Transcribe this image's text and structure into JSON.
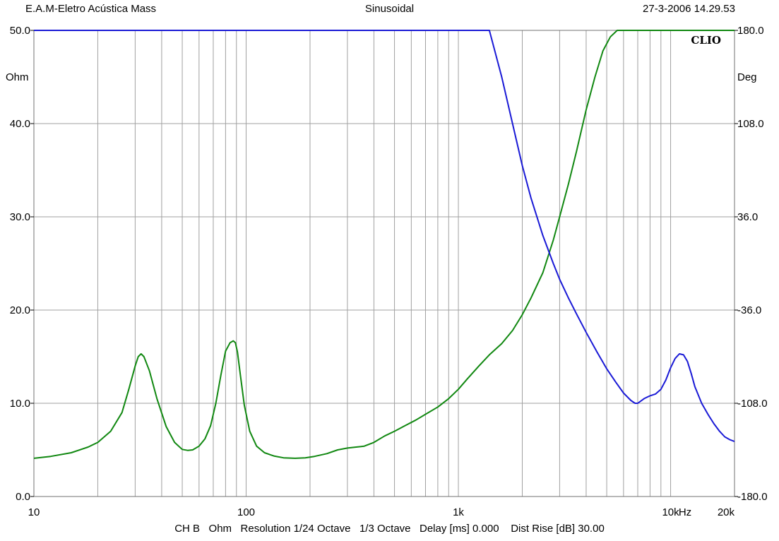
{
  "header": {
    "left": "E.A.M-Eletro Acústica Mass",
    "center": "Sinusoidal",
    "right": "27-3-2006 14.29.53"
  },
  "footer": "CH B   Ohm   Resolution 1/24 Octave   1/3 Octave   Delay [ms] 0.000    Dist Rise [dB] 30.00",
  "chart_data": {
    "type": "line",
    "logo": "CLIO",
    "x_scale": "log",
    "xlim": [
      10,
      20000
    ],
    "x_tick_labels": [
      {
        "value": 10,
        "label": "10"
      },
      {
        "value": 100,
        "label": "100"
      },
      {
        "value": 1000,
        "label": "1k"
      },
      {
        "value": 10000,
        "label": "10k"
      },
      {
        "value": 20000,
        "label": "20k"
      }
    ],
    "x_unit": "Hz",
    "y_left": {
      "unit": "Ohm",
      "ylim": [
        0,
        50
      ],
      "ticks": [
        "0.0",
        "10.0",
        "20.0",
        "30.0",
        "40.0",
        "50.0"
      ],
      "tick_values": [
        0,
        10,
        20,
        30,
        40,
        50
      ]
    },
    "y_right": {
      "unit": "Deg",
      "ylim": [
        -180,
        180
      ],
      "ticks": [
        "-180.0",
        "-108.0",
        "-36.0",
        "36.0",
        "108.0",
        "180.0"
      ],
      "tick_values": [
        -180,
        -108,
        -36,
        36,
        108,
        180
      ]
    },
    "grid": true,
    "series": [
      {
        "color": "#118811",
        "axis": "left",
        "x": [
          10,
          12,
          15,
          18,
          20,
          23,
          26,
          28,
          30,
          31,
          32,
          33,
          35,
          38,
          42,
          46,
          50,
          53,
          56,
          60,
          64,
          68,
          72,
          76,
          80,
          84,
          87,
          89,
          91,
          94,
          98,
          104,
          112,
          122,
          135,
          150,
          170,
          190,
          210,
          240,
          270,
          300,
          330,
          360,
          400,
          450,
          500,
          560,
          630,
          710,
          800,
          900,
          1000,
          1100,
          1250,
          1400,
          1600,
          1800,
          2000,
          2200,
          2500,
          2800,
          3000,
          3300,
          3600,
          4000,
          4400,
          4800,
          5200,
          5600,
          5900,
          6000,
          6300,
          7000,
          8000,
          10000,
          15000,
          20000
        ],
        "y": [
          4.1,
          4.3,
          4.7,
          5.3,
          5.8,
          7.0,
          9.0,
          11.5,
          14.0,
          15.0,
          15.3,
          15.0,
          13.5,
          10.5,
          7.5,
          5.8,
          5.05,
          4.95,
          5.0,
          5.4,
          6.2,
          7.6,
          10.0,
          13.0,
          15.6,
          16.5,
          16.7,
          16.5,
          15.5,
          13.0,
          9.8,
          7.0,
          5.4,
          4.7,
          4.35,
          4.15,
          4.1,
          4.15,
          4.3,
          4.6,
          5.0,
          5.2,
          5.3,
          5.4,
          5.8,
          6.5,
          7.0,
          7.6,
          8.2,
          8.9,
          9.6,
          10.5,
          11.5,
          12.6,
          14.0,
          15.2,
          16.4,
          17.8,
          19.5,
          21.3,
          24.0,
          27.5,
          30.0,
          33.5,
          37.0,
          41.5,
          45.0,
          47.8,
          49.3,
          50.0,
          50.0,
          50.0,
          50.0,
          50.0,
          50.0,
          50.0,
          50.0,
          50.0
        ]
      },
      {
        "color": "#1a1ad6",
        "axis": "left",
        "x": [
          10,
          100,
          1000,
          1400,
          1600,
          1800,
          2000,
          2200,
          2500,
          2800,
          3000,
          3300,
          3600,
          4000,
          4500,
          5000,
          5500,
          6000,
          6500,
          6800,
          7000,
          7500,
          8000,
          8500,
          9000,
          9500,
          10000,
          10500,
          11000,
          11500,
          12000,
          12500,
          13000,
          14000,
          15000,
          16000,
          17000,
          18000,
          19000,
          20000
        ],
        "y": [
          50.0,
          50.0,
          50.0,
          50.0,
          45.0,
          40.0,
          35.5,
          32.0,
          28.0,
          25.0,
          23.3,
          21.3,
          19.6,
          17.6,
          15.5,
          13.7,
          12.3,
          11.1,
          10.3,
          10.0,
          10.0,
          10.5,
          10.8,
          11.0,
          11.5,
          12.5,
          13.8,
          14.8,
          15.3,
          15.2,
          14.5,
          13.2,
          11.8,
          10.0,
          8.8,
          7.8,
          7.0,
          6.4,
          6.1,
          5.9
        ]
      }
    ]
  }
}
